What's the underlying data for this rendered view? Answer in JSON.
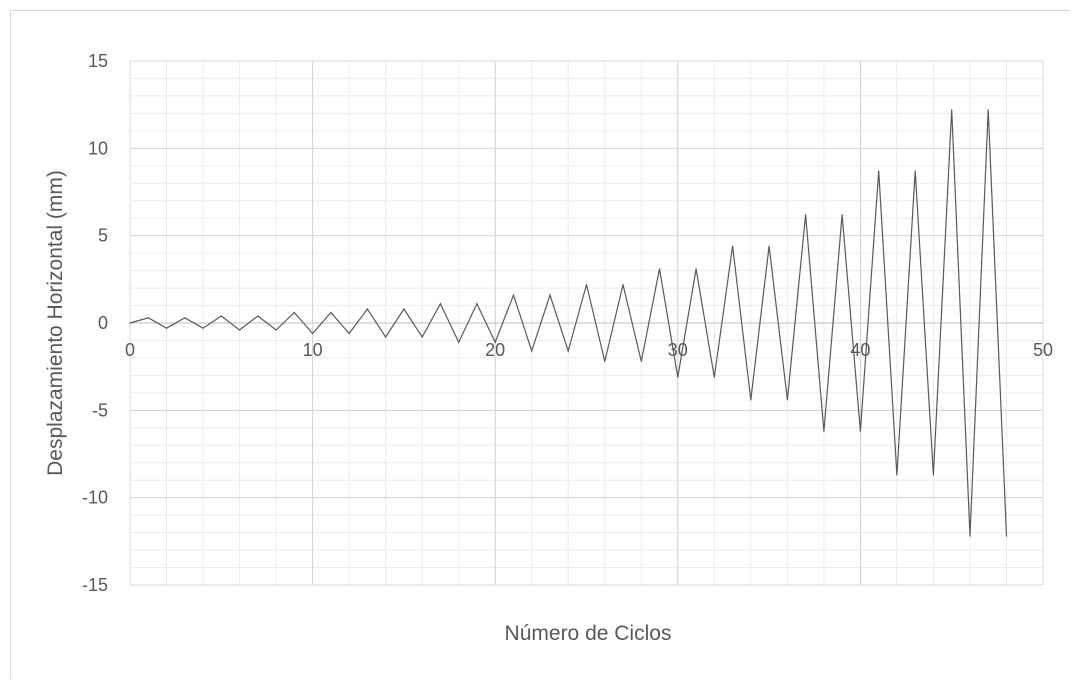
{
  "chart_data": {
    "type": "line",
    "title": "",
    "xlabel": "Número de Ciclos",
    "ylabel": "Desplazamiento Horizontal (mm)",
    "xlim": [
      0,
      50
    ],
    "ylim": [
      -15,
      15
    ],
    "x_ticks": [
      "0",
      "10",
      "20",
      "30",
      "40",
      "50"
    ],
    "y_ticks": [
      "15",
      "10",
      "5",
      "0",
      "-5",
      "-10",
      "-15"
    ],
    "grid": true,
    "legend": "none",
    "line_color": "#595959",
    "series": [
      {
        "x": [
          0,
          1,
          2,
          3,
          4,
          5,
          6,
          7,
          8,
          9,
          10,
          11,
          12,
          13,
          14,
          15,
          16,
          17,
          18,
          19,
          20,
          21,
          22,
          23,
          24,
          25,
          26,
          27,
          28,
          29,
          30,
          31,
          32,
          33,
          34,
          35,
          36,
          37,
          38,
          39,
          40,
          41,
          42,
          43,
          44,
          45,
          46,
          47,
          48
        ],
        "values": [
          0,
          0.3,
          -0.3,
          0.3,
          -0.3,
          0.4,
          -0.4,
          0.4,
          -0.4,
          0.6,
          -0.6,
          0.6,
          -0.6,
          0.8,
          -0.8,
          0.8,
          -0.8,
          1.1,
          -1.1,
          1.1,
          -1.1,
          1.6,
          -1.6,
          1.6,
          -1.6,
          2.2,
          -2.2,
          2.2,
          -2.2,
          3.1,
          -3.1,
          3.1,
          -3.1,
          4.4,
          -4.4,
          4.4,
          -4.4,
          6.2,
          -6.2,
          6.2,
          -6.2,
          8.7,
          -8.7,
          8.7,
          -8.7,
          12.2,
          -12.2,
          12.2,
          -12.2
        ]
      }
    ]
  }
}
